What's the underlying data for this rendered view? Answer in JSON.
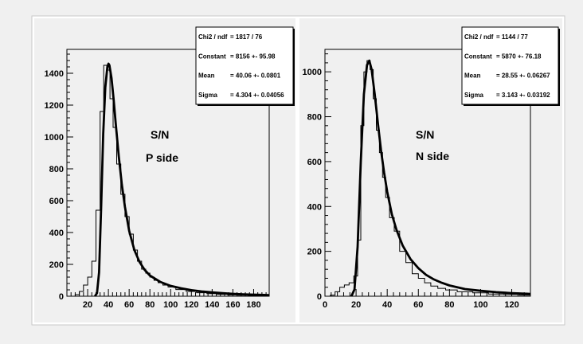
{
  "chart_data": [
    {
      "type": "histogram",
      "annotations": [
        "S/N",
        "P side"
      ],
      "stats": [
        {
          "label": "Chi2 / ndf",
          "value": "= 1817 / 76"
        },
        {
          "label": "Constant",
          "value": "= 8156 +- 95.98"
        },
        {
          "label": "Mean",
          "value": "= 40.06 +- 0.0801"
        },
        {
          "label": "Sigma",
          "value": "= 4.304 +- 0.04056"
        }
      ],
      "xlim": [
        0,
        195
      ],
      "ylim": [
        0,
        1550
      ],
      "xticks": [
        20,
        40,
        60,
        80,
        100,
        120,
        140,
        160,
        180
      ],
      "yticks": [
        0,
        200,
        400,
        600,
        800,
        1000,
        1200,
        1400
      ],
      "hist": {
        "x": [
          2,
          6,
          10,
          14,
          18,
          22,
          26,
          30,
          34,
          37,
          40,
          43,
          46,
          50,
          54,
          58,
          62,
          66,
          70,
          74,
          78,
          82,
          86,
          90,
          95,
          100,
          110,
          120,
          130,
          140,
          150,
          160,
          170,
          180,
          190
        ],
        "y": [
          0,
          0,
          10,
          30,
          70,
          120,
          220,
          540,
          1160,
          1450,
          1420,
          1240,
          1060,
          830,
          640,
          500,
          390,
          290,
          220,
          170,
          145,
          120,
          100,
          85,
          70,
          58,
          42,
          30,
          22,
          16,
          12,
          8,
          6,
          4,
          3
        ]
      },
      "fit": {
        "x": [
          27,
          29,
          31,
          33,
          35,
          37,
          39,
          40.1,
          41,
          43,
          45,
          47,
          50,
          53,
          56,
          60,
          65,
          70,
          75,
          80,
          90,
          100,
          110,
          120,
          130,
          140,
          150,
          160,
          170,
          180,
          190,
          195
        ],
        "y": [
          0,
          20,
          150,
          560,
          1020,
          1310,
          1440,
          1460,
          1450,
          1370,
          1240,
          1090,
          880,
          700,
          560,
          410,
          290,
          215,
          165,
          130,
          90,
          65,
          50,
          38,
          30,
          24,
          19,
          15,
          12,
          10,
          8,
          7
        ]
      }
    },
    {
      "type": "histogram",
      "annotations": [
        "S/N",
        "N side"
      ],
      "stats": [
        {
          "label": "Chi2 / ndf",
          "value": "= 1144 / 77"
        },
        {
          "label": "Constant",
          "value": "= 5870 +- 76.18"
        },
        {
          "label": "Mean",
          "value": "= 28.55 +- 0.06267"
        },
        {
          "label": "Sigma",
          "value": "= 3.143 +- 0.03192"
        }
      ],
      "xlim": [
        0,
        132
      ],
      "ylim": [
        0,
        1100
      ],
      "xticks": [
        0,
        20,
        40,
        60,
        80,
        100,
        120
      ],
      "yticks": [
        0,
        200,
        400,
        600,
        800,
        1000
      ],
      "hist": {
        "x": [
          2,
          5,
          8,
          11,
          14,
          17,
          20,
          22,
          24,
          26,
          28,
          30,
          32,
          34,
          36,
          38,
          40,
          43,
          46,
          50,
          54,
          58,
          62,
          66,
          70,
          75,
          80,
          90,
          100,
          110,
          120,
          130
        ],
        "y": [
          0,
          5,
          20,
          40,
          50,
          60,
          90,
          250,
          760,
          1000,
          1050,
          1010,
          880,
          740,
          640,
          530,
          440,
          350,
          290,
          200,
          150,
          100,
          80,
          60,
          45,
          35,
          28,
          20,
          15,
          10,
          8,
          5
        ]
      },
      "fit": {
        "x": [
          17,
          19,
          21,
          23,
          25,
          27,
          28.5,
          30,
          32,
          34,
          36,
          38,
          40,
          43,
          46,
          50,
          55,
          60,
          65,
          70,
          75,
          80,
          90,
          100,
          110,
          120,
          130,
          132
        ],
        "y": [
          0,
          30,
          220,
          600,
          900,
          1030,
          1050,
          1010,
          900,
          770,
          650,
          550,
          465,
          365,
          295,
          225,
          165,
          125,
          95,
          75,
          60,
          48,
          32,
          24,
          18,
          14,
          11,
          10
        ]
      }
    }
  ]
}
